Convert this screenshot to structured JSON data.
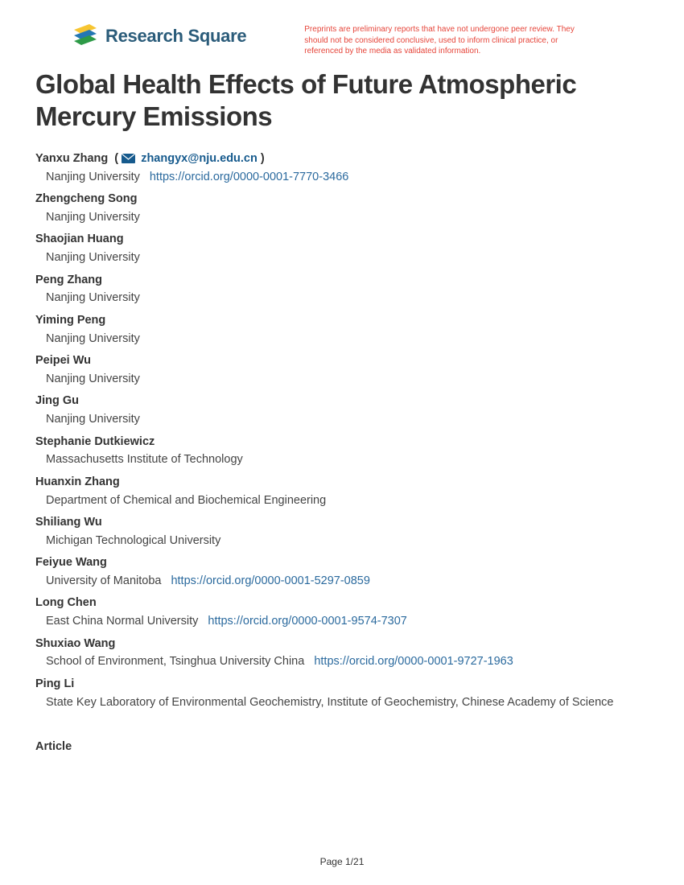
{
  "brand": {
    "name": "Research Square",
    "logo_colors": {
      "top": "#f7c531",
      "mid": "#2477b3",
      "bot": "#2d9a47"
    },
    "text_color": "#2b5c7a"
  },
  "disclaimer": "Preprints are preliminary reports that have not undergone peer review. They should not be considered conclusive, used to inform clinical practice, or referenced by the media as validated information.",
  "title": "Global Health Effects of Future Atmospheric Mercury Emissions",
  "authors": [
    {
      "name": "Yanxu Zhang",
      "corresponding": true,
      "email": "zhangyx@nju.edu.cn",
      "affiliation": "Nanjing University",
      "orcid": "https://orcid.org/0000-0001-7770-3466"
    },
    {
      "name": "Zhengcheng Song",
      "affiliation": "Nanjing University"
    },
    {
      "name": "Shaojian Huang",
      "affiliation": "Nanjing University"
    },
    {
      "name": "Peng Zhang",
      "affiliation": "Nanjing University"
    },
    {
      "name": "Yiming Peng",
      "affiliation": "Nanjing University"
    },
    {
      "name": "Peipei Wu",
      "affiliation": "Nanjing University"
    },
    {
      "name": "Jing Gu",
      "affiliation": "Nanjing University"
    },
    {
      "name": "Stephanie Dutkiewicz",
      "affiliation": "Massachusetts Institute of Technology"
    },
    {
      "name": "Huanxin Zhang",
      "affiliation": "Department of Chemical and Biochemical Engineering"
    },
    {
      "name": "Shiliang Wu",
      "affiliation": "Michigan Technological University"
    },
    {
      "name": "Feiyue Wang",
      "affiliation": "University of Manitoba",
      "orcid": "https://orcid.org/0000-0001-5297-0859"
    },
    {
      "name": "Long Chen",
      "affiliation": "East China Normal University",
      "orcid": "https://orcid.org/0000-0001-9574-7307"
    },
    {
      "name": "Shuxiao Wang",
      "affiliation": "School of Environment, Tsinghua University China",
      "orcid": "https://orcid.org/0000-0001-9727-1963"
    },
    {
      "name": "Ping Li",
      "affiliation": "State Key Laboratory of Environmental Geochemistry, Institute of Geochemistry, Chinese Academy of Science"
    }
  ],
  "article_label": "Article",
  "pagination": {
    "current": 1,
    "total": 21
  },
  "colors": {
    "link": "#2b6a9e",
    "disclaimer": "#e6453a",
    "text": "#333333"
  }
}
